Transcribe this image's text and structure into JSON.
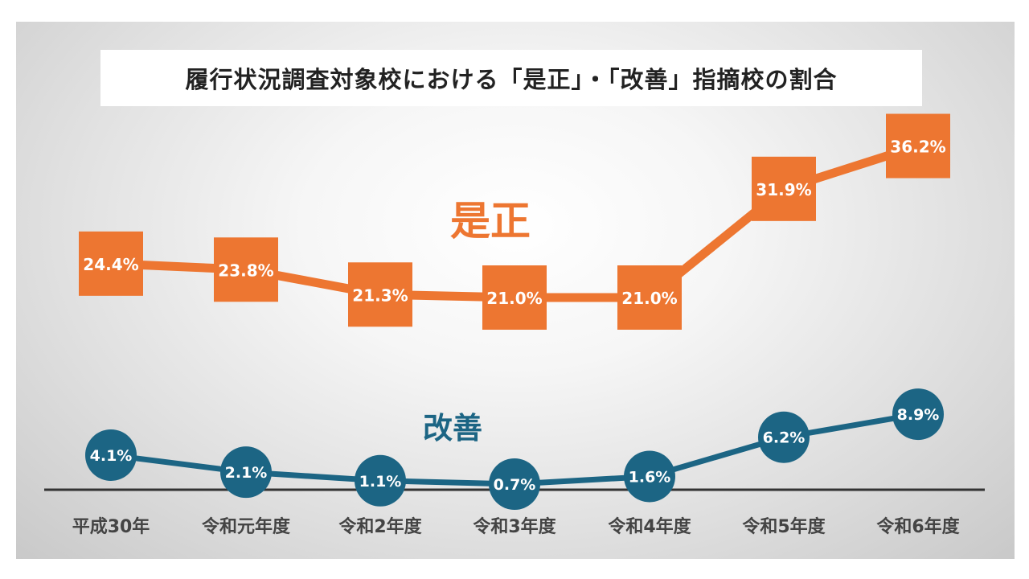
{
  "chart_data": {
    "type": "line",
    "title": "履行状況調査対象校における「是正」・「改善」指摘校の割合",
    "categories": [
      "平成30年",
      "令和元年度",
      "令和2年度",
      "令和3年度",
      "令和4年度",
      "令和5年度",
      "令和6年度"
    ],
    "series": [
      {
        "name": "是正",
        "values": [
          24.4,
          23.8,
          21.3,
          21.0,
          21.0,
          31.9,
          36.2
        ],
        "labels": [
          "24.4%",
          "23.8%",
          "21.3%",
          "21.0%",
          "21.0%",
          "31.9%",
          "36.2%"
        ],
        "color": "#ED7631",
        "marker": "square"
      },
      {
        "name": "改善",
        "values": [
          4.1,
          2.1,
          1.1,
          0.7,
          1.6,
          6.2,
          8.9
        ],
        "labels": [
          "4.1%",
          "2.1%",
          "1.1%",
          "0.7%",
          "1.6%",
          "6.2%",
          "8.9%"
        ],
        "color": "#1C6584",
        "marker": "circle"
      }
    ],
    "grid": false,
    "legend": "inline labels"
  }
}
